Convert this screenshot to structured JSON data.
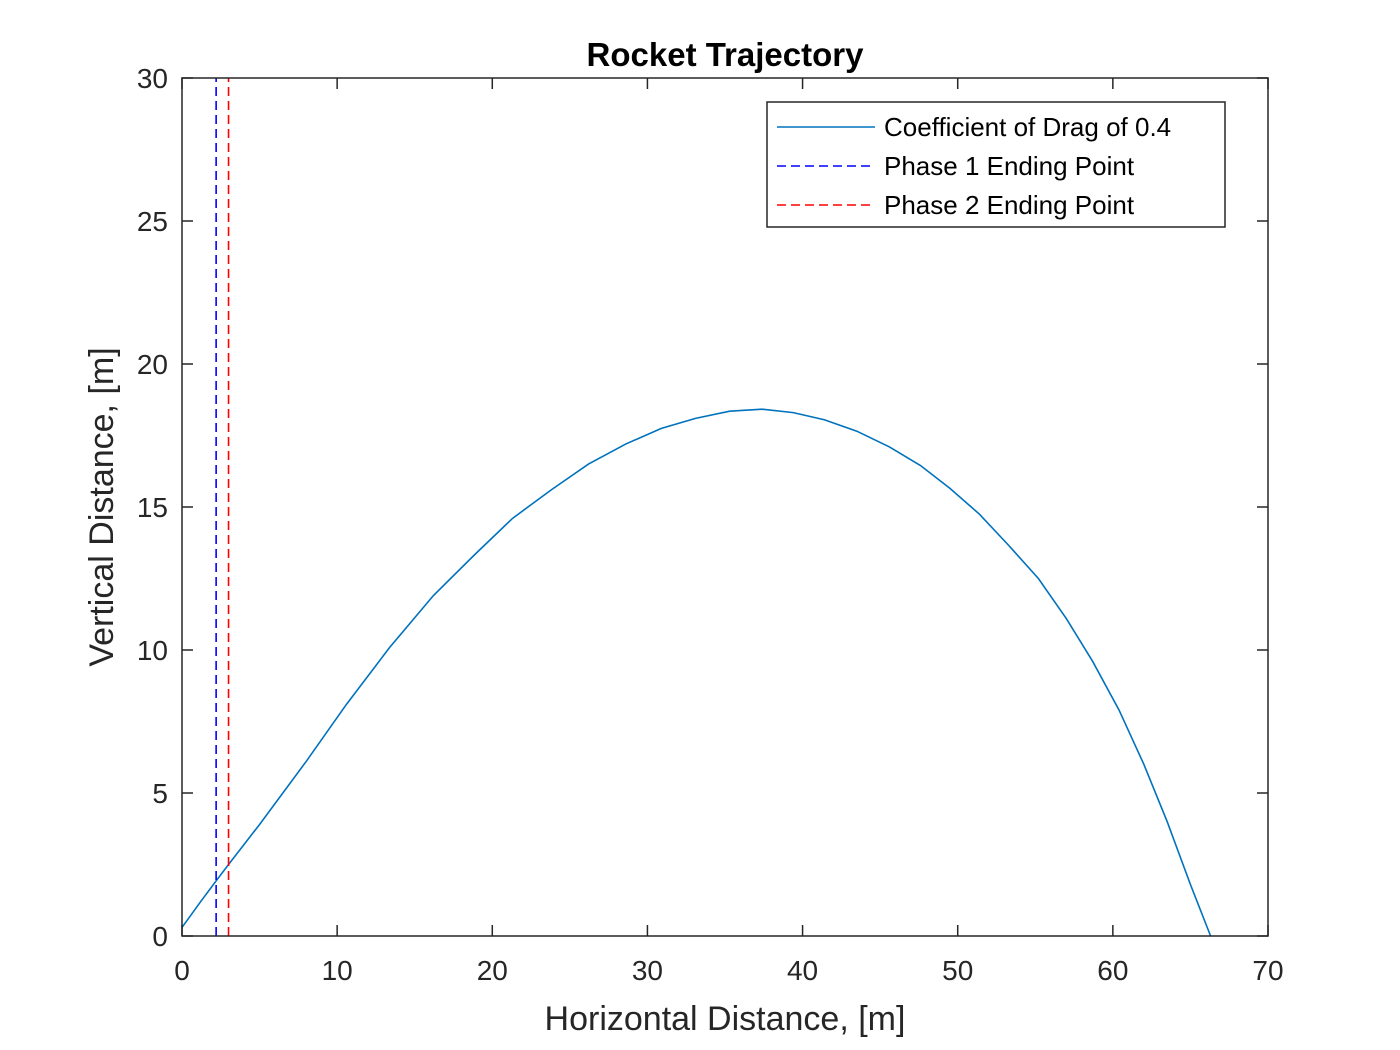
{
  "chart_data": {
    "type": "line",
    "title": "Rocket Trajectory",
    "xlabel": "Horizontal Distance, [m]",
    "ylabel": "Vertical Distance, [m]",
    "xlim": [
      0,
      70
    ],
    "ylim": [
      0,
      30
    ],
    "xticks": [
      0,
      10,
      20,
      30,
      40,
      50,
      60,
      70
    ],
    "yticks": [
      0,
      5,
      10,
      15,
      20,
      25,
      30
    ],
    "grid": false,
    "legend_position": "top-right",
    "series": [
      {
        "name": "Coefficient of Drag of 0.4",
        "style": "solid",
        "color": "#0072BD",
        "x": [
          0,
          1.2,
          2.3,
          3.0,
          5.0,
          8.0,
          10.6,
          13.4,
          16.2,
          18.8,
          21.3,
          23.8,
          26.2,
          28.6,
          30.9,
          33.1,
          35.3,
          37.4,
          39.4,
          41.4,
          43.5,
          45.6,
          47.6,
          49.5,
          51.4,
          53.3,
          55.2,
          57.0,
          58.7,
          60.4,
          62.0,
          63.5,
          65.0,
          66.3
        ],
        "y": [
          0.3,
          1.2,
          2.0,
          2.5,
          3.9,
          6.1,
          8.1,
          10.1,
          11.9,
          13.3,
          14.6,
          15.6,
          16.5,
          17.2,
          17.75,
          18.1,
          18.35,
          18.42,
          18.3,
          18.05,
          17.65,
          17.1,
          16.45,
          15.65,
          14.75,
          13.65,
          12.5,
          11.1,
          9.6,
          7.9,
          6.0,
          4.0,
          1.8,
          0.0
        ]
      },
      {
        "name": "Phase 1 Ending Point",
        "style": "dashed",
        "color": "#0000FF",
        "x": [
          2.2,
          2.2
        ],
        "y": [
          0,
          30
        ]
      },
      {
        "name": "Phase 2 Ending Point",
        "style": "dashed",
        "color": "#FF0000",
        "x": [
          3.0,
          3.0
        ],
        "y": [
          0,
          30
        ]
      }
    ]
  }
}
